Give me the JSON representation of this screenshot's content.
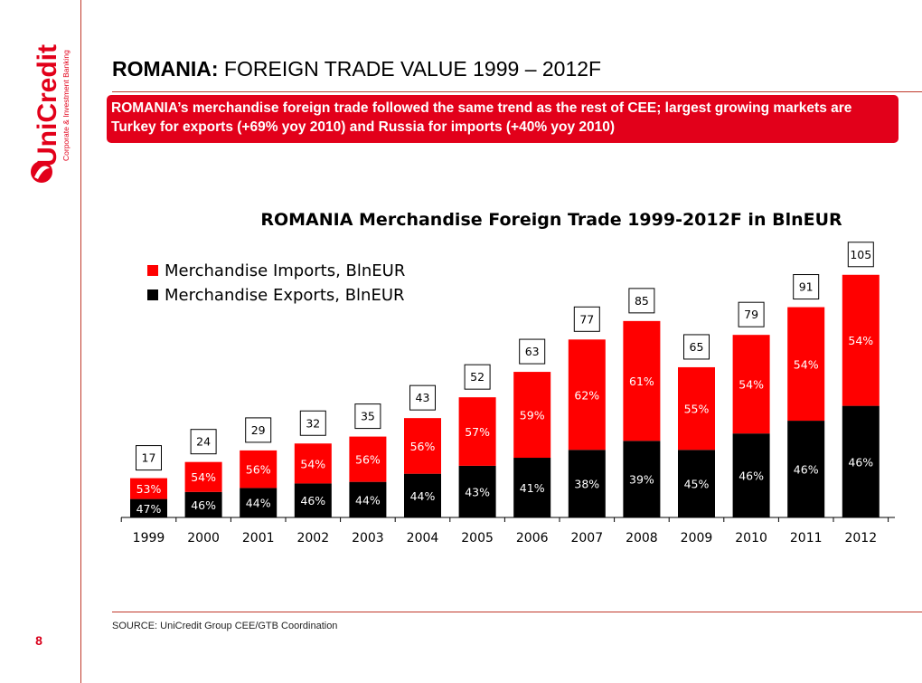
{
  "slide": {
    "title_bold": "ROMANIA:",
    "title_rest": " FOREIGN TRADE VALUE 1999 – 2012F",
    "banner": "ROMANIA’s merchandise foreign trade followed the same trend as the rest of CEE; largest growing markets are Turkey for exports (+69% yoy 2010) and Russia for imports (+40% yoy 2010)",
    "source": "SOURCE: UniCredit Group CEE/GTB Coordination",
    "page_number": "8"
  },
  "logo": {
    "name": "UniCredit",
    "tagline": "Corporate & Investment Banking"
  },
  "colors": {
    "brand_red": "#e2001a",
    "imports": "#ff0000",
    "exports": "#000000"
  },
  "chart_data": {
    "type": "bar",
    "stacked": true,
    "title": "ROMANIA Merchandise Foreign Trade 1999-2012F in BlnEUR",
    "categories": [
      "1999",
      "2000",
      "2001",
      "2002",
      "2003",
      "2004",
      "2005",
      "2006",
      "2007",
      "2008",
      "2009",
      "2010",
      "2011",
      "2012"
    ],
    "totals": [
      17,
      24,
      29,
      32,
      35,
      43,
      52,
      63,
      77,
      85,
      65,
      79,
      91,
      105
    ],
    "series": [
      {
        "name": "Merchandise Exports, BlnEUR",
        "color": "#000000",
        "share_labels": [
          "47%",
          "46%",
          "44%",
          "46%",
          "44%",
          "44%",
          "43%",
          "41%",
          "38%",
          "39%",
          "45%",
          "46%",
          "46%",
          "46%"
        ],
        "shares": [
          47,
          46,
          44,
          46,
          44,
          44,
          43,
          41,
          38,
          39,
          45,
          46,
          46,
          46
        ]
      },
      {
        "name": "Merchandise Imports, BlnEUR",
        "color": "#ff0000",
        "share_labels": [
          "53%",
          "54%",
          "56%",
          "54%",
          "56%",
          "56%",
          "57%",
          "59%",
          "62%",
          "61%",
          "55%",
          "54%",
          "54%",
          "54%"
        ],
        "shares": [
          53,
          54,
          56,
          54,
          56,
          56,
          57,
          59,
          62,
          61,
          55,
          54,
          54,
          54
        ]
      }
    ],
    "legend_position": "top-left",
    "grid": false,
    "ylim": [
      0,
      110
    ]
  }
}
